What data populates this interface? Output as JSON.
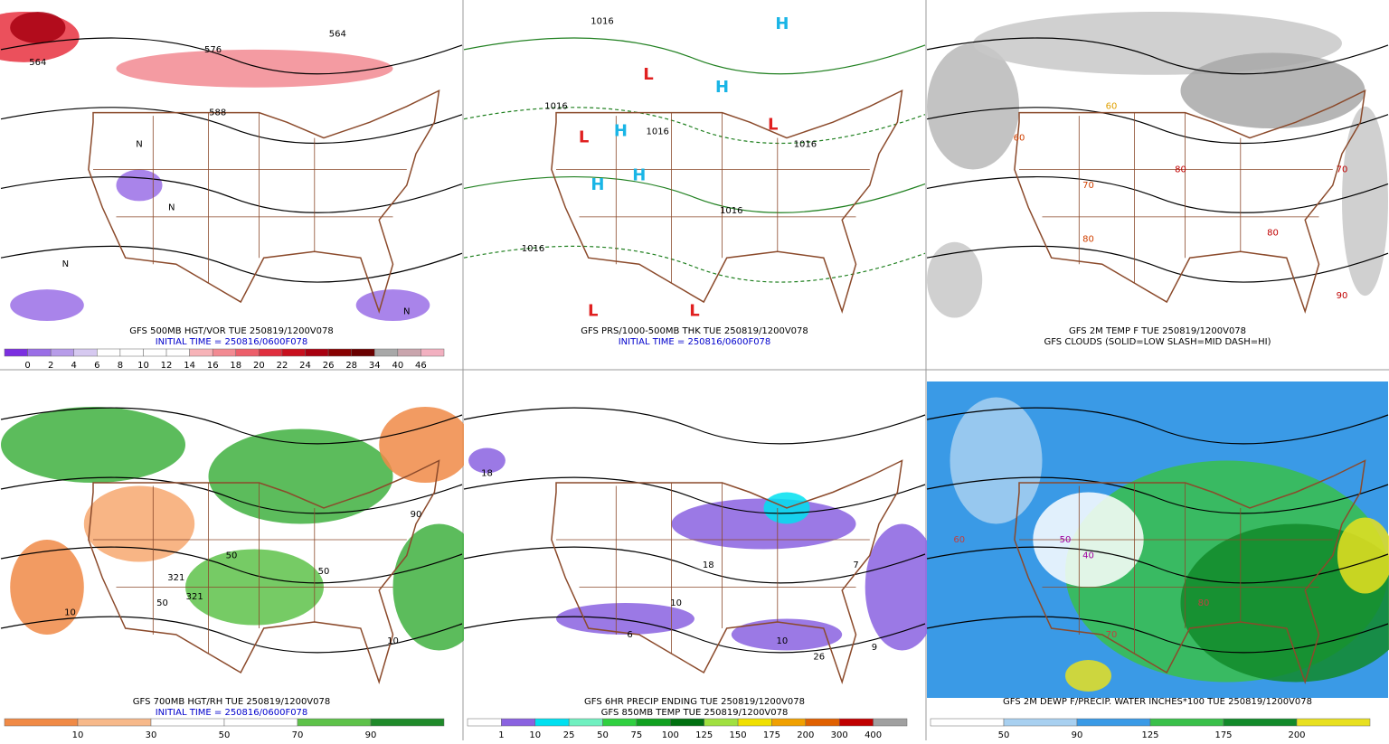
{
  "panels": [
    {
      "caption": [
        "GFS 500MB HGT/VOR TUE 250819/1200V078",
        "INITIAL TIME = 250816/0600F078"
      ],
      "colorbar": {
        "labels": [
          0,
          2,
          4,
          6,
          8,
          10,
          12,
          14,
          16,
          18,
          20,
          22,
          24,
          26,
          28,
          34,
          40,
          46
        ],
        "colors": [
          "#7b2fe0",
          "#9a6ee6",
          "#b79ce9",
          "#d6c9f0",
          "#ffffff",
          "#ffffff",
          "#ffffff",
          "#ffffff",
          "#f7b3b8",
          "#f28a92",
          "#ec5e6a",
          "#e02f3e",
          "#c8101e",
          "#a80010",
          "#870000",
          "#6a0000",
          "#a8a8a8",
          "#c9a5ad",
          "#f2b0c0"
        ]
      },
      "map_labels": [
        "564",
        "576",
        "588",
        "564",
        "N",
        "N",
        "N",
        "N"
      ]
    },
    {
      "caption": [
        "GFS PRS/1000-500MB THK TUE 250819/1200V078",
        "INITIAL TIME = 250816/0600F078"
      ],
      "map_labels": [
        "1016",
        "1016",
        "1016",
        "1016",
        "1016",
        "1016",
        "H",
        "H",
        "H",
        "H",
        "H",
        "L",
        "L",
        "L",
        "L",
        "L"
      ]
    },
    {
      "caption": [
        "GFS 2M TEMP F TUE 250819/1200V078",
        "GFS CLOUDS (SOLID=LOW SLASH=MID DASH=HI)"
      ],
      "map_labels": [
        "60",
        "70",
        "80",
        "80",
        "90",
        "80",
        "70",
        "60"
      ]
    },
    {
      "caption": [
        "GFS 700MB HGT/RH TUE 250819/1200V078",
        "INITIAL TIME = 250816/0600F078"
      ],
      "colorbar": {
        "labels": [
          10,
          30,
          50,
          70,
          90
        ],
        "colors": [
          "#f08a46",
          "#f7b98a",
          "#ffffff",
          "#ffffff",
          "#5ec24a",
          "#1f8a2a"
        ]
      },
      "map_labels": [
        "50",
        "50",
        "321",
        "321",
        "10",
        "90",
        "50",
        "10"
      ]
    },
    {
      "caption": [
        "GFS 6HR PRECIP ENDING TUE 250819/1200V078",
        "GFS 850MB TEMP TUE 250819/1200V078"
      ],
      "colorbar": {
        "labels": [
          1,
          10,
          25,
          50,
          75,
          100,
          125,
          150,
          175,
          200,
          300,
          400
        ],
        "colors": [
          "#ffffff",
          "#8a62e0",
          "#00e0f0",
          "#70f0c0",
          "#30d040",
          "#10a020",
          "#007010",
          "#a0e040",
          "#f0e000",
          "#f0a000",
          "#e06000",
          "#c00000",
          "#a0a0a0"
        ]
      },
      "map_labels": [
        "18",
        "18",
        "10",
        "6",
        "10",
        "26",
        "9",
        "7"
      ]
    },
    {
      "caption": [
        "GFS 2M DEWP F/PRECIP. WATER INCHES*100 TUE 250819/1200V078"
      ],
      "colorbar": {
        "labels": [
          50,
          90,
          125,
          175,
          200
        ],
        "colors": [
          "#ffffff",
          "#a8d0f0",
          "#3a9ae6",
          "#3ac04a",
          "#128a2a",
          "#e8e020"
        ]
      },
      "map_labels": [
        "60",
        "70",
        "80",
        "50",
        "40"
      ]
    }
  ]
}
